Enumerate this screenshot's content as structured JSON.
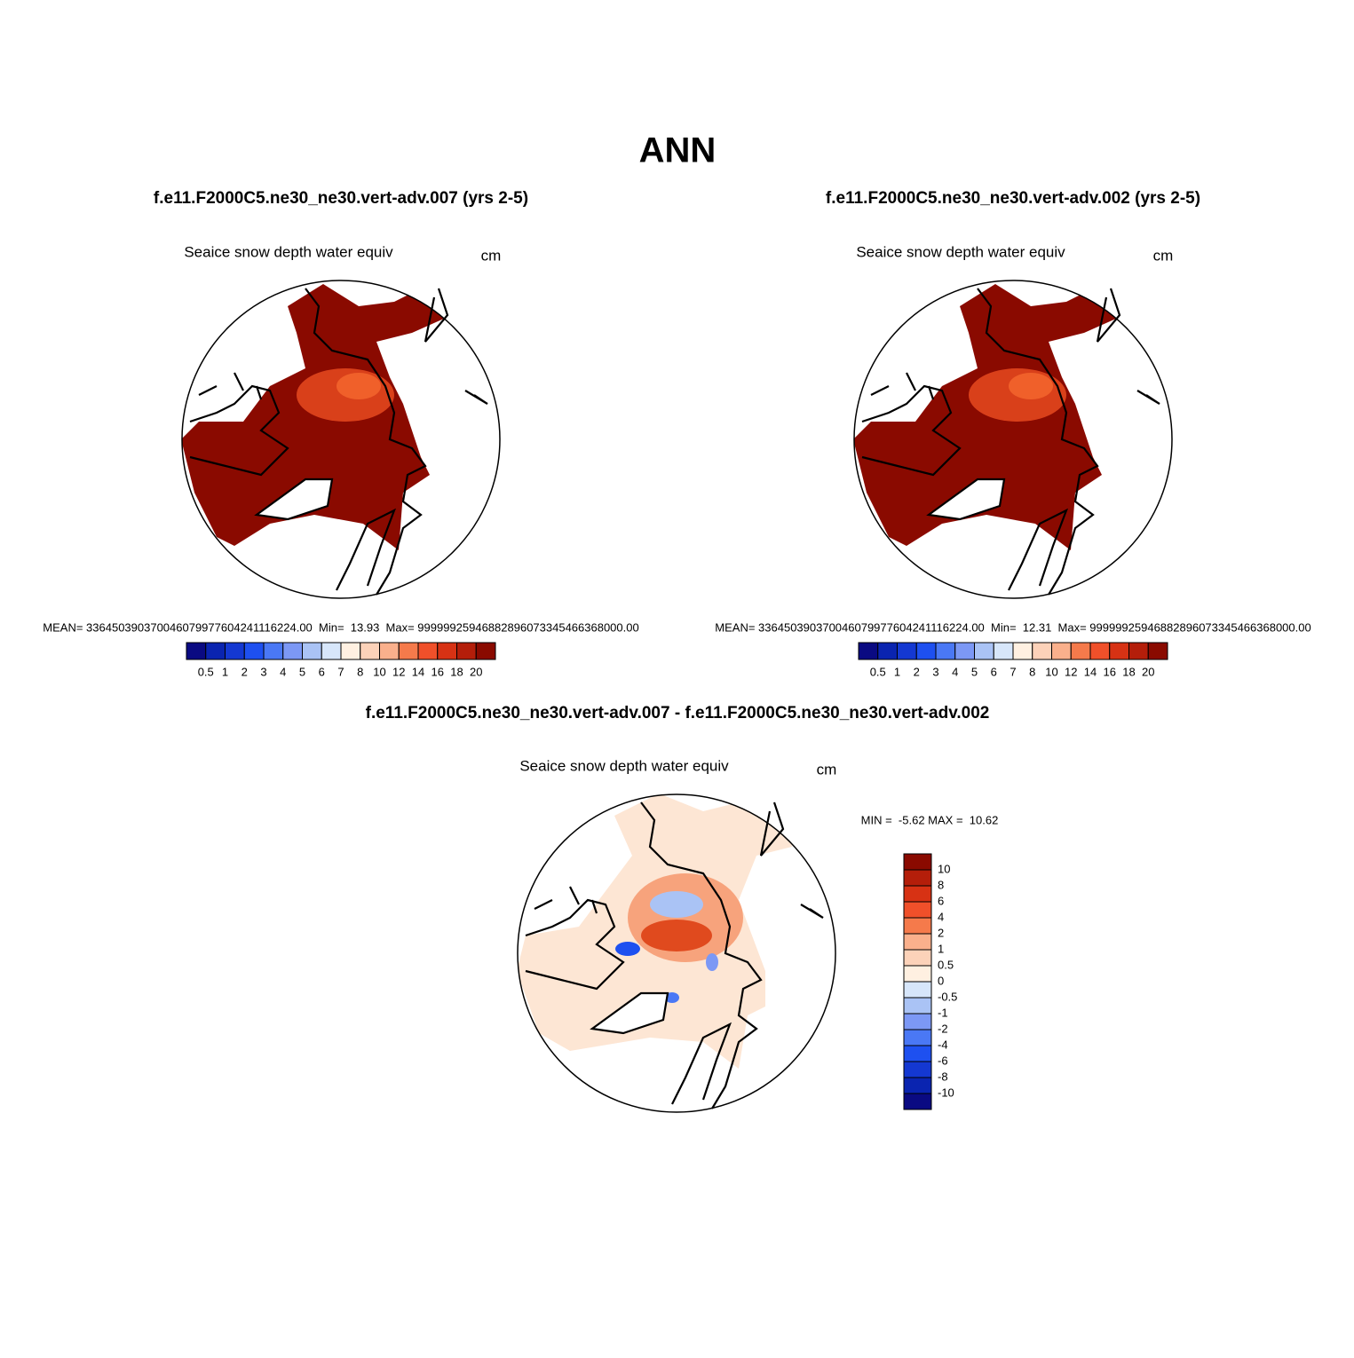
{
  "title": "ANN",
  "panels": [
    {
      "title": "f.e11.F2000C5.ne30_ne30.vert-adv.007 (yrs 2-5)",
      "variable": "Seaice snow depth water equiv",
      "units": "cm",
      "stats": "MEAN= 336450390370046079977604241116224.00  Min=  13.93  Max= 99999925946882896073345466368000.00"
    },
    {
      "title": "f.e11.F2000C5.ne30_ne30.vert-adv.002 (yrs 2-5)",
      "variable": "Seaice snow depth water equiv",
      "units": "cm",
      "stats": "MEAN= 336450390370046079977604241116224.00  Min=  12.31  Max= 99999925946882896073345466368000.00"
    },
    {
      "title": "f.e11.F2000C5.ne30_ne30.vert-adv.007 - f.e11.F2000C5.ne30_ne30.vert-adv.002",
      "variable": "Seaice snow depth water equiv",
      "units": "cm",
      "stats": "MIN =  -5.62 MAX =  10.62"
    }
  ],
  "colorbar_top": {
    "labels": [
      "0.5",
      "1",
      "2",
      "3",
      "4",
      "5",
      "6",
      "7",
      "8",
      "10",
      "12",
      "14",
      "16",
      "18",
      "20"
    ],
    "colors": [
      "#0a0a82",
      "#0a24b0",
      "#1438d2",
      "#1e50f0",
      "#4a78f5",
      "#7c98f5",
      "#aac3f5",
      "#d7e6fa",
      "#fff0e1",
      "#fcd2b9",
      "#fab08c",
      "#f57a4b",
      "#f0502a",
      "#d73214",
      "#b41e0a",
      "#8a0a00"
    ]
  },
  "colorbar_diff": {
    "labels": [
      "10",
      "8",
      "6",
      "4",
      "2",
      "1",
      "0.5",
      "0",
      "-0.5",
      "-1",
      "-2",
      "-4",
      "-6",
      "-8",
      "-10"
    ],
    "colors": [
      "#8a0a00",
      "#b41e0a",
      "#d73214",
      "#f0502a",
      "#f57a4b",
      "#fab08c",
      "#fcd2b9",
      "#fff0e1",
      "#d7e6fa",
      "#aac3f5",
      "#7c98f5",
      "#4a78f5",
      "#1e50f0",
      "#1438d2",
      "#0a24b0",
      "#0a0a82"
    ]
  }
}
